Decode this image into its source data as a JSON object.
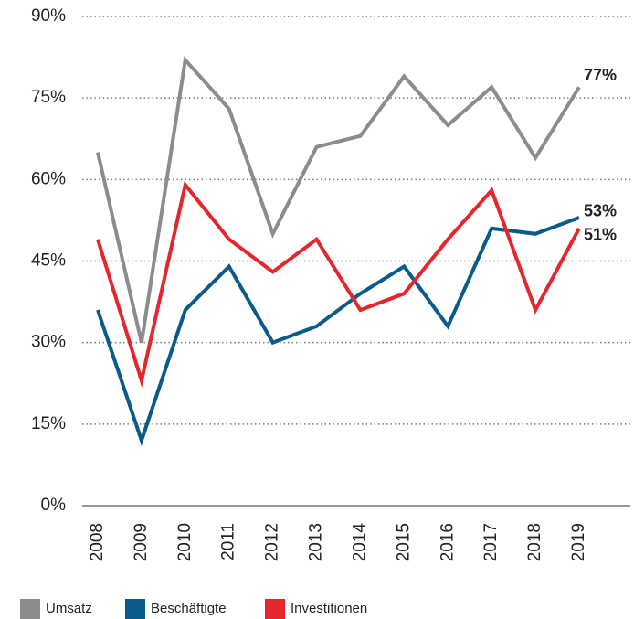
{
  "chart_data": {
    "type": "line",
    "categories": [
      "2008",
      "2009",
      "2010",
      "2011",
      "2012",
      "2013",
      "2014",
      "2015",
      "2016",
      "2017",
      "2018",
      "2019"
    ],
    "series": [
      {
        "name": "Umsatz",
        "color": "#8c8c8c",
        "values": [
          65,
          30,
          82,
          73,
          50,
          66,
          68,
          79,
          70,
          77,
          64,
          77
        ],
        "value_labels": [
          null,
          null,
          null,
          null,
          null,
          null,
          null,
          null,
          null,
          null,
          null,
          "77%"
        ]
      },
      {
        "name": "Beschäftigte",
        "color": "#0b5a8c",
        "values": [
          36,
          12,
          36,
          44,
          30,
          33,
          39,
          44,
          33,
          51,
          50,
          53
        ],
        "value_labels": [
          null,
          null,
          null,
          null,
          null,
          null,
          null,
          null,
          null,
          null,
          null,
          "53%"
        ]
      },
      {
        "name": "Investitionen",
        "color": "#e5272d",
        "values": [
          49,
          23,
          59,
          49,
          43,
          49,
          36,
          39,
          49,
          58,
          36,
          51
        ],
        "value_labels": [
          null,
          null,
          null,
          null,
          null,
          null,
          null,
          null,
          null,
          null,
          null,
          "51%"
        ]
      }
    ],
    "ylim": [
      0,
      90
    ],
    "yticks": [
      {
        "value": 0,
        "label": "0%"
      },
      {
        "value": 15,
        "label": "15%"
      },
      {
        "value": 30,
        "label": "30%"
      },
      {
        "value": 45,
        "label": "45%"
      },
      {
        "value": 60,
        "label": "60%"
      },
      {
        "value": 75,
        "label": "75%"
      },
      {
        "value": 90,
        "label": "90%"
      }
    ],
    "grid": true,
    "legend": "bottom"
  }
}
